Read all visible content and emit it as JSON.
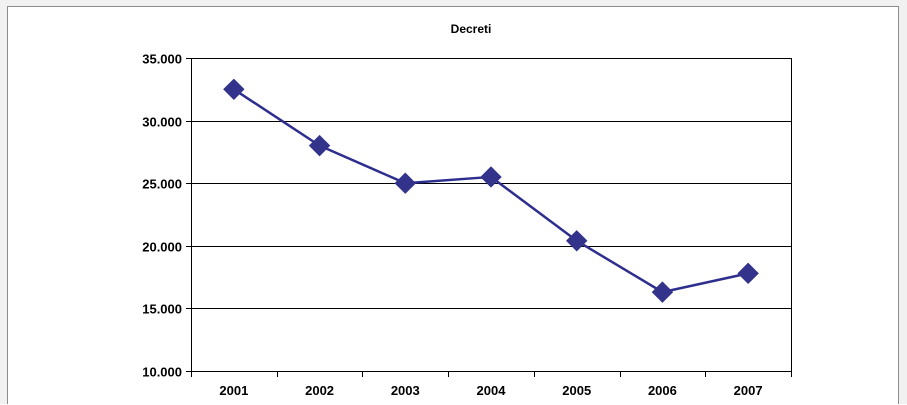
{
  "chart_data": {
    "type": "line",
    "title": "Decreti",
    "xlabel": "",
    "ylabel": "",
    "categories": [
      "2001",
      "2002",
      "2003",
      "2004",
      "2005",
      "2006",
      "2007"
    ],
    "series": [
      {
        "values": [
          32500,
          28000,
          25000,
          25500,
          20400,
          16300,
          17800
        ],
        "color": "#2e2e8f",
        "marker": "diamond"
      }
    ],
    "ylim": [
      10000,
      35000
    ],
    "yticks": [
      10000,
      15000,
      20000,
      25000,
      30000,
      35000
    ],
    "ytick_labels": [
      "10.000",
      "15.000",
      "20.000",
      "25.000",
      "30.000",
      "35.000"
    ],
    "grid": "horizontal",
    "legend": "none",
    "colors": {
      "line": "#2e2e8f",
      "marker": "#33338c",
      "grid": "#000000",
      "background": "#ffffff"
    }
  }
}
